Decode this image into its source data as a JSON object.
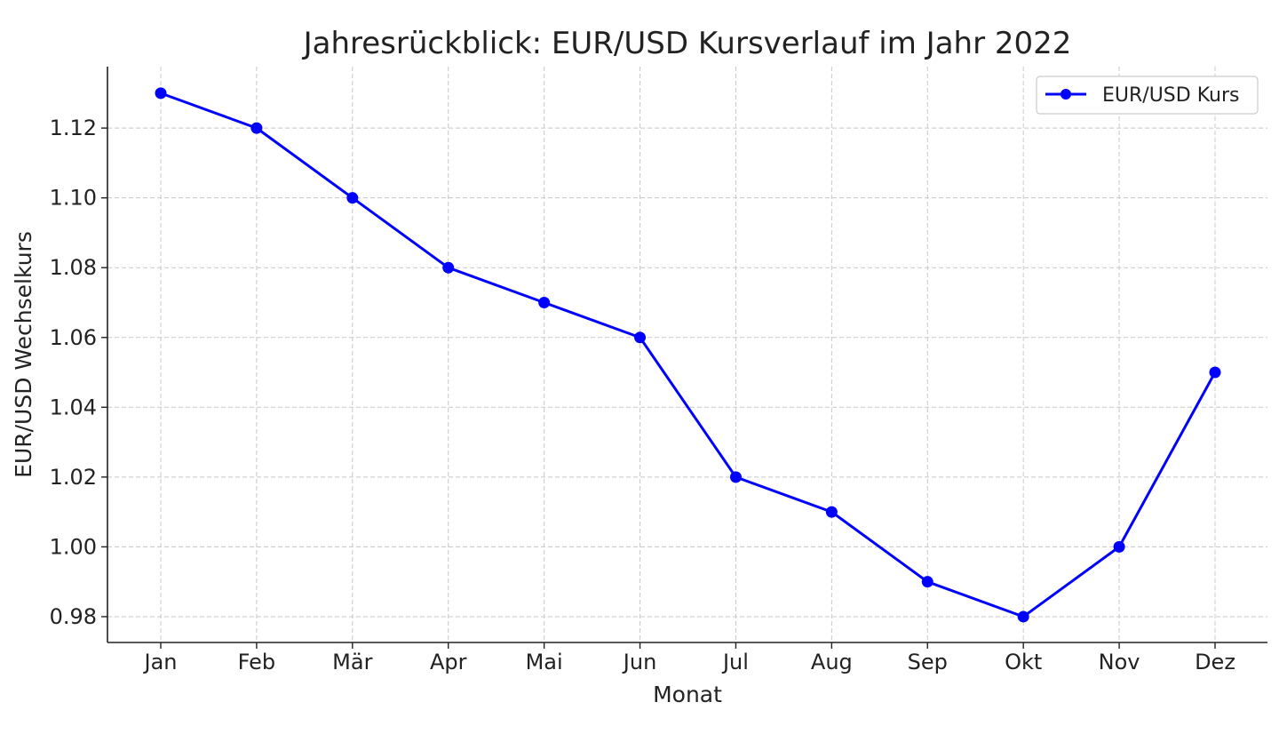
{
  "chart_data": {
    "type": "line",
    "title": "Jahresrückblick: EUR/USD Kursverlauf im Jahr 2022",
    "xlabel": "Monat",
    "ylabel": "EUR/USD Wechselkurs",
    "categories": [
      "Jan",
      "Feb",
      "Mär",
      "Apr",
      "Mai",
      "Jun",
      "Jul",
      "Aug",
      "Sep",
      "Okt",
      "Nov",
      "Dez"
    ],
    "series": [
      {
        "name": "EUR/USD Kurs",
        "color": "#0000ff",
        "marker": "circle",
        "values": [
          1.13,
          1.12,
          1.1,
          1.08,
          1.07,
          1.06,
          1.02,
          1.01,
          0.99,
          0.98,
          1.0,
          1.05
        ]
      }
    ],
    "yticks": [
      "0.98",
      "1.00",
      "1.02",
      "1.04",
      "1.06",
      "1.08",
      "1.10",
      "1.12"
    ],
    "ylim": [
      0.9726,
      1.1376
    ],
    "grid": true,
    "legend_position": "top-right"
  }
}
